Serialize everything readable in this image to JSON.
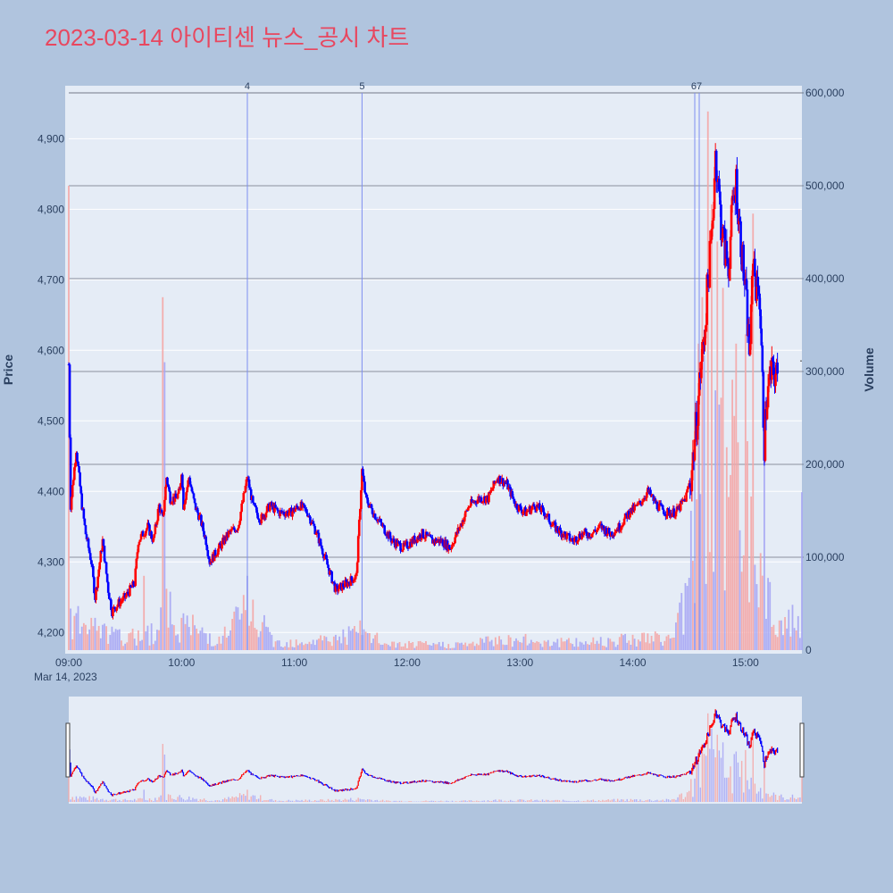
{
  "title": "2023-03-14 아이티센 뉴스_공시 차트",
  "colors": {
    "background": "#b0c4de",
    "plot_bg": "#e5ecf6",
    "title": "#e8475f",
    "up": "#ff0000",
    "down": "#0000ff",
    "vol_up": "#f4a6a6",
    "vol_down": "#a6a6f4",
    "news_line": "#7d8ef0",
    "volume_grid": "#6b7280"
  },
  "chart_data": {
    "type": "candlestick",
    "title": "2023-03-14 아이티센 뉴스_공시 차트",
    "xlabel": "",
    "ylabel": "Price",
    "y2label": "Volume",
    "date_label": "Mar 14, 2023",
    "x_ticks": [
      "09:00",
      "10:00",
      "11:00",
      "12:00",
      "13:00",
      "14:00",
      "15:00"
    ],
    "y_ticks": [
      "4,200",
      "4,300",
      "4,400",
      "4,500",
      "4,600",
      "4,700",
      "4,800",
      "4,900"
    ],
    "y2_ticks": [
      "0",
      "100,000",
      "200,000",
      "300,000",
      "400,000",
      "500,000",
      "600,000"
    ],
    "x_range": [
      "09:00",
      "15:30"
    ],
    "ylim": [
      4175,
      4965
    ],
    "y2lim": [
      0,
      600000
    ],
    "grid": true,
    "news_markers": [
      {
        "label": "4",
        "time": "10:35"
      },
      {
        "label": "5",
        "time": "11:36"
      },
      {
        "label": "67",
        "time": "14:33"
      }
    ],
    "price_path": [
      [
        "09:00",
        4580
      ],
      [
        "09:01",
        4380
      ],
      [
        "09:04",
        4460
      ],
      [
        "09:07",
        4380
      ],
      [
        "09:09",
        4340
      ],
      [
        "09:12",
        4300
      ],
      [
        "09:14",
        4250
      ],
      [
        "09:18",
        4330
      ],
      [
        "09:21",
        4260
      ],
      [
        "09:23",
        4230
      ],
      [
        "09:26",
        4240
      ],
      [
        "09:30",
        4250
      ],
      [
        "09:35",
        4270
      ],
      [
        "09:37",
        4330
      ],
      [
        "09:42",
        4350
      ],
      [
        "09:45",
        4330
      ],
      [
        "09:48",
        4380
      ],
      [
        "09:50",
        4360
      ],
      [
        "09:52",
        4420
      ],
      [
        "09:54",
        4390
      ],
      [
        "09:57",
        4390
      ],
      [
        "09:59",
        4400
      ],
      [
        "10:00",
        4430
      ],
      [
        "10:01",
        4380
      ],
      [
        "10:04",
        4420
      ],
      [
        "10:07",
        4380
      ],
      [
        "10:10",
        4360
      ],
      [
        "10:13",
        4330
      ],
      [
        "10:15",
        4300
      ],
      [
        "10:20",
        4320
      ],
      [
        "10:25",
        4340
      ],
      [
        "10:30",
        4350
      ],
      [
        "10:35",
        4420
      ],
      [
        "10:38",
        4380
      ],
      [
        "10:42",
        4360
      ],
      [
        "10:47",
        4380
      ],
      [
        "10:52",
        4370
      ],
      [
        "10:58",
        4370
      ],
      [
        "11:03",
        4380
      ],
      [
        "11:07",
        4370
      ],
      [
        "11:12",
        4340
      ],
      [
        "11:17",
        4300
      ],
      [
        "11:22",
        4260
      ],
      [
        "11:28",
        4270
      ],
      [
        "11:33",
        4280
      ],
      [
        "11:36",
        4430
      ],
      [
        "11:38",
        4390
      ],
      [
        "11:42",
        4370
      ],
      [
        "11:47",
        4350
      ],
      [
        "11:52",
        4330
      ],
      [
        "11:58",
        4320
      ],
      [
        "12:03",
        4330
      ],
      [
        "12:08",
        4340
      ],
      [
        "12:13",
        4330
      ],
      [
        "12:18",
        4330
      ],
      [
        "12:23",
        4320
      ],
      [
        "12:28",
        4350
      ],
      [
        "12:33",
        4380
      ],
      [
        "12:38",
        4390
      ],
      [
        "12:43",
        4390
      ],
      [
        "12:48",
        4420
      ],
      [
        "12:53",
        4410
      ],
      [
        "12:58",
        4380
      ],
      [
        "13:03",
        4370
      ],
      [
        "13:08",
        4380
      ],
      [
        "13:13",
        4370
      ],
      [
        "13:18",
        4350
      ],
      [
        "13:23",
        4340
      ],
      [
        "13:28",
        4330
      ],
      [
        "13:33",
        4340
      ],
      [
        "13:38",
        4340
      ],
      [
        "13:43",
        4350
      ],
      [
        "13:48",
        4340
      ],
      [
        "13:53",
        4350
      ],
      [
        "13:58",
        4370
      ],
      [
        "14:03",
        4380
      ],
      [
        "14:08",
        4400
      ],
      [
        "14:13",
        4380
      ],
      [
        "14:18",
        4370
      ],
      [
        "14:23",
        4370
      ],
      [
        "14:28",
        4390
      ],
      [
        "14:31",
        4420
      ],
      [
        "14:34",
        4500
      ],
      [
        "14:36",
        4570
      ],
      [
        "14:38",
        4620
      ],
      [
        "14:40",
        4700
      ],
      [
        "14:42",
        4760
      ],
      [
        "14:43",
        4820
      ],
      [
        "14:44",
        4880
      ],
      [
        "14:45",
        4850
      ],
      [
        "14:47",
        4780
      ],
      [
        "14:49",
        4740
      ],
      [
        "14:51",
        4720
      ],
      [
        "14:53",
        4800
      ],
      [
        "14:55",
        4840
      ],
      [
        "14:56",
        4800
      ],
      [
        "14:58",
        4740
      ],
      [
        "15:00",
        4680
      ],
      [
        "15:02",
        4600
      ],
      [
        "15:03",
        4640
      ],
      [
        "15:04",
        4740
      ],
      [
        "15:06",
        4680
      ],
      [
        "15:07",
        4700
      ],
      [
        "15:08",
        4640
      ],
      [
        "15:09",
        4550
      ],
      [
        "15:10",
        4470
      ],
      [
        "15:11",
        4520
      ],
      [
        "15:13",
        4560
      ],
      [
        "15:15",
        4570
      ],
      [
        "15:17",
        4560
      ]
    ],
    "volume_shape": [
      [
        "09:00",
        40000
      ],
      [
        "09:10",
        25000
      ],
      [
        "09:30",
        12000
      ],
      [
        "09:45",
        20000
      ],
      [
        "09:50",
        45000
      ],
      [
        "10:00",
        30000
      ],
      [
        "10:20",
        10000
      ],
      [
        "10:35",
        45000
      ],
      [
        "10:50",
        8000
      ],
      [
        "11:20",
        12000
      ],
      [
        "11:35",
        20000
      ],
      [
        "11:50",
        6000
      ],
      [
        "12:30",
        6000
      ],
      [
        "12:50",
        12000
      ],
      [
        "13:30",
        8000
      ],
      [
        "14:00",
        14000
      ],
      [
        "14:20",
        12000
      ],
      [
        "14:30",
        60000
      ],
      [
        "14:35",
        200000
      ],
      [
        "14:40",
        260000
      ],
      [
        "14:45",
        230000
      ],
      [
        "14:50",
        170000
      ],
      [
        "14:55",
        200000
      ],
      [
        "15:00",
        150000
      ],
      [
        "15:05",
        100000
      ],
      [
        "15:10",
        70000
      ],
      [
        "15:15",
        40000
      ],
      [
        "15:20",
        30000
      ]
    ],
    "volume_spikes": [
      [
        "09:00",
        500000
      ],
      [
        "09:40",
        80000
      ],
      [
        "09:50",
        380000
      ],
      [
        "09:51",
        310000
      ],
      [
        "10:35",
        80000
      ],
      [
        "14:31",
        150000
      ],
      [
        "14:35",
        330000
      ],
      [
        "14:37",
        380000
      ],
      [
        "14:40",
        580000
      ],
      [
        "14:42",
        480000
      ],
      [
        "14:45",
        440000
      ],
      [
        "14:48",
        390000
      ],
      [
        "14:55",
        330000
      ],
      [
        "15:00",
        340000
      ],
      [
        "15:04",
        470000
      ],
      [
        "15:10",
        250000
      ],
      [
        "15:30",
        170000
      ]
    ]
  }
}
